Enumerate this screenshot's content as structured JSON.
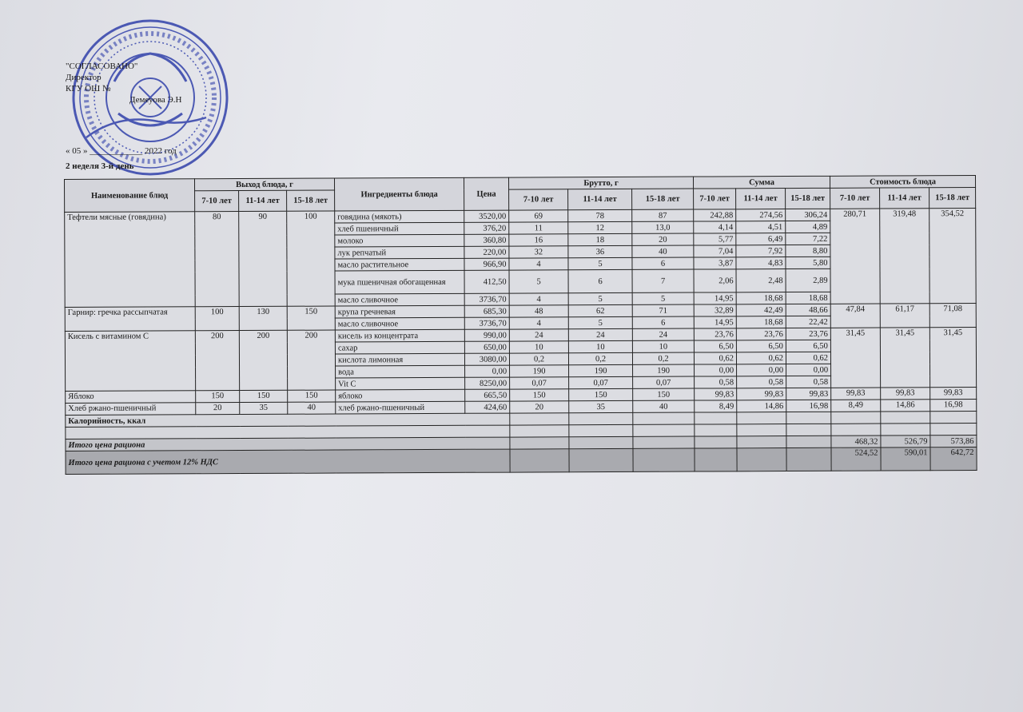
{
  "approval": {
    "title": "\"СОГЛАСОВАНО\"",
    "position": "Директор",
    "org": "КГУ ОШ №",
    "name": "Демеуова Э.Н"
  },
  "date_line": "« 05 » ____________ 2022 год",
  "week_day": "2 неделя 3-й день",
  "stamp_colour": "#2b3ba8",
  "table": {
    "headers": {
      "dish": "Наименование блюд",
      "yield": "Выход блюда, г",
      "ingredients": "Ингредиенты блюда",
      "price": "Цена",
      "brutto": "Брутто, г",
      "sum": "Сумма",
      "cost": "Стоимость блюда",
      "ages": [
        "7-10 лет",
        "11-14 лет",
        "15-18 лет"
      ]
    },
    "dishes": [
      {
        "name": "Тефтели мясные (говядина)",
        "yield": [
          "80",
          "90",
          "100"
        ],
        "cost": [
          "280,71",
          "319,48",
          "354,52"
        ],
        "ingredients": [
          {
            "name": "говядина (мякоть)",
            "price": "3520,00",
            "brutto": [
              "69",
              "78",
              "87"
            ],
            "sum": [
              "242,88",
              "274,56",
              "306,24"
            ]
          },
          {
            "name": "хлеб пшеничный",
            "price": "376,20",
            "brutto": [
              "11",
              "12",
              "13,0"
            ],
            "sum": [
              "4,14",
              "4,51",
              "4,89"
            ]
          },
          {
            "name": "молоко",
            "price": "360,80",
            "brutto": [
              "16",
              "18",
              "20"
            ],
            "sum": [
              "5,77",
              "6,49",
              "7,22"
            ]
          },
          {
            "name": "лук репчатый",
            "price": "220,00",
            "brutto": [
              "32",
              "36",
              "40"
            ],
            "sum": [
              "7,04",
              "7,92",
              "8,80"
            ]
          },
          {
            "name": "масло растительное",
            "price": "966,90",
            "brutto": [
              "4",
              "5",
              "6"
            ],
            "sum": [
              "3,87",
              "4,83",
              "5,80"
            ]
          },
          {
            "name": "мука пшеничная обогащенная",
            "price": "412,50",
            "brutto": [
              "5",
              "6",
              "7"
            ],
            "sum": [
              "2,06",
              "2,48",
              "2,89"
            ]
          },
          {
            "name": "масло сливочное",
            "price": "3736,70",
            "brutto": [
              "4",
              "5",
              "5"
            ],
            "sum": [
              "14,95",
              "18,68",
              "18,68"
            ]
          }
        ]
      },
      {
        "name": "Гарнир: гречка рассыпчатая",
        "yield": [
          "100",
          "130",
          "150"
        ],
        "cost": [
          "47,84",
          "61,17",
          "71,08"
        ],
        "ingredients": [
          {
            "name": "крупа гречневая",
            "price": "685,30",
            "brutto": [
              "48",
              "62",
              "71"
            ],
            "sum": [
              "32,89",
              "42,49",
              "48,66"
            ]
          },
          {
            "name": "масло сливочное",
            "price": "3736,70",
            "brutto": [
              "4",
              "5",
              "6"
            ],
            "sum": [
              "14,95",
              "18,68",
              "22,42"
            ]
          }
        ]
      },
      {
        "name": "Кисель с витамином С",
        "yield": [
          "200",
          "200",
          "200"
        ],
        "cost": [
          "31,45",
          "31,45",
          "31,45"
        ],
        "ingredients": [
          {
            "name": "кисель из концентрата",
            "price": "990,00",
            "brutto": [
              "24",
              "24",
              "24"
            ],
            "sum": [
              "23,76",
              "23,76",
              "23,76"
            ]
          },
          {
            "name": "сахар",
            "price": "650,00",
            "brutto": [
              "10",
              "10",
              "10"
            ],
            "sum": [
              "6,50",
              "6,50",
              "6,50"
            ]
          },
          {
            "name": "кислота лимонная",
            "price": "3080,00",
            "brutto": [
              "0,2",
              "0,2",
              "0,2"
            ],
            "sum": [
              "0,62",
              "0,62",
              "0,62"
            ]
          },
          {
            "name": "вода",
            "price": "0,00",
            "brutto": [
              "190",
              "190",
              "190"
            ],
            "sum": [
              "0,00",
              "0,00",
              "0,00"
            ]
          },
          {
            "name": "Vit C",
            "price": "8250,00",
            "brutto": [
              "0,07",
              "0,07",
              "0,07"
            ],
            "sum": [
              "0,58",
              "0,58",
              "0,58"
            ]
          }
        ]
      },
      {
        "name": "Яблоко",
        "yield": [
          "150",
          "150",
          "150"
        ],
        "cost": [
          "99,83",
          "99,83",
          "99,83"
        ],
        "ingredients": [
          {
            "name": "яблоко",
            "price": "665,50",
            "brutto": [
              "150",
              "150",
              "150"
            ],
            "sum": [
              "99,83",
              "99,83",
              "99,83"
            ]
          }
        ]
      },
      {
        "name": "Хлеб ржано-пшеничный",
        "yield": [
          "20",
          "35",
          "40"
        ],
        "cost": [
          "8,49",
          "14,86",
          "16,98"
        ],
        "ingredients": [
          {
            "name": "хлеб ржано-пшеничный",
            "price": "424,60",
            "brutto": [
              "20",
              "35",
              "40"
            ],
            "sum": [
              "8,49",
              "14,86",
              "16,98"
            ]
          }
        ]
      }
    ],
    "calories_label": "Калорийность, ккал",
    "total_label": "Итого цена рациона",
    "total_values": [
      "468,32",
      "526,79",
      "573,86"
    ],
    "total_vat_label": "Итого цена рациона с учетом 12% НДС",
    "total_vat_values": [
      "524,52",
      "590,01",
      "642,72"
    ]
  }
}
